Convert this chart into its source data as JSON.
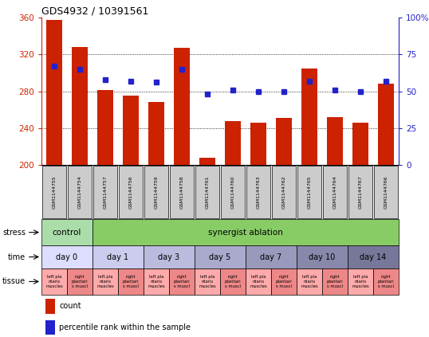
{
  "title": "GDS4932 / 10391561",
  "samples": [
    "GSM1144755",
    "GSM1144754",
    "GSM1144757",
    "GSM1144756",
    "GSM1144759",
    "GSM1144758",
    "GSM1144761",
    "GSM1144760",
    "GSM1144763",
    "GSM1144762",
    "GSM1144765",
    "GSM1144764",
    "GSM1144767",
    "GSM1144766"
  ],
  "counts": [
    357,
    328,
    281,
    275,
    268,
    327,
    208,
    248,
    246,
    251,
    305,
    252,
    246,
    288
  ],
  "percentiles": [
    67,
    65,
    58,
    57,
    56,
    65,
    48,
    51,
    50,
    50,
    57,
    51,
    50,
    57
  ],
  "ymin": 200,
  "ymax": 360,
  "yticks": [
    200,
    240,
    280,
    320,
    360
  ],
  "y2min": 0,
  "y2max": 100,
  "y2ticks": [
    0,
    25,
    50,
    75,
    100
  ],
  "bar_color": "#cc2200",
  "dot_color": "#2222cc",
  "bg_color": "#ffffff",
  "stress_control_color": "#aaddaa",
  "stress_synergist_color": "#88cc66",
  "time_colors_list": [
    "#ddddff",
    "#ccccee",
    "#bbbbdd",
    "#aaaacc",
    "#9999bb",
    "#8888aa",
    "#777799"
  ],
  "tissue_left_color": "#ffaaaa",
  "tissue_right_color": "#ee8888",
  "sample_label_bg": "#cccccc",
  "legend_count_color": "#cc2200",
  "legend_dot_color": "#2222cc",
  "stress_regions": [
    [
      0,
      1,
      "#aaddaa",
      "control"
    ],
    [
      2,
      13,
      "#88cc66",
      "synergist ablation"
    ]
  ],
  "time_regions": [
    [
      0,
      1,
      "#ddddff",
      "day 0"
    ],
    [
      2,
      3,
      "#ccccee",
      "day 1"
    ],
    [
      4,
      5,
      "#bbbbdd",
      "day 3"
    ],
    [
      6,
      7,
      "#aaaacc",
      "day 5"
    ],
    [
      8,
      9,
      "#9999bb",
      "day 7"
    ],
    [
      10,
      11,
      "#8888aa",
      "day 10"
    ],
    [
      12,
      13,
      "#777799",
      "day 14"
    ]
  ]
}
